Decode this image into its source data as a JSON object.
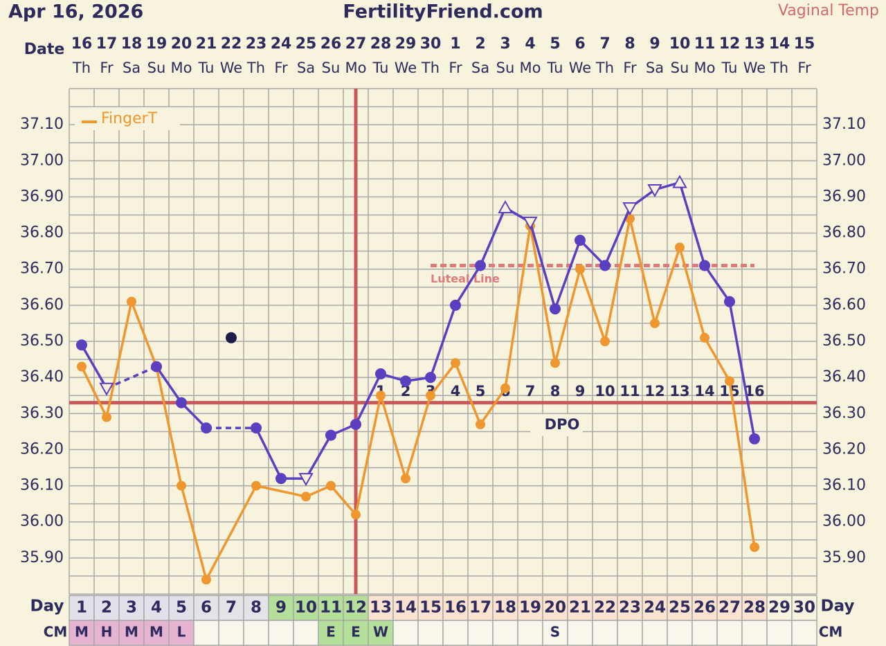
{
  "chart_data": {
    "type": "line",
    "date": "Apr 16, 2026",
    "title": "FertilityFriend.com",
    "date_label": "Date",
    "day_label": "Day",
    "cm_label": "CM",
    "dates": [
      16,
      17,
      18,
      19,
      20,
      21,
      22,
      23,
      24,
      25,
      26,
      27,
      28,
      29,
      30,
      1,
      2,
      3,
      4,
      5,
      6,
      7,
      8,
      9,
      10,
      11,
      12,
      13,
      14,
      15
    ],
    "weekdays": [
      "Th",
      "Fr",
      "Sa",
      "Su",
      "Mo",
      "Tu",
      "We",
      "Th",
      "Fr",
      "Sa",
      "Su",
      "Mo",
      "Tu",
      "We",
      "Th",
      "Fr",
      "Sa",
      "Su",
      "Mo",
      "Tu",
      "We",
      "Th",
      "Fr",
      "Sa",
      "Su",
      "Mo",
      "Tu",
      "We",
      "Th",
      "Fr"
    ],
    "days": [
      1,
      2,
      3,
      4,
      5,
      6,
      7,
      8,
      9,
      10,
      11,
      12,
      13,
      14,
      15,
      16,
      17,
      18,
      19,
      20,
      21,
      22,
      23,
      24,
      25,
      26,
      27,
      28,
      29,
      30
    ],
    "day_colors": [
      "#e2e0e8",
      "#e2e0e8",
      "#e2e0e8",
      "#e2e0e8",
      "#e2e0e8",
      "#e4e3e8",
      "#e4e3e8",
      "#e4e3e8",
      "#b5e09a",
      "#b5e09a",
      "#b5e09a",
      "#b5e09a",
      "#fbe3cf",
      "#fbe3cf",
      "#fbe3cf",
      "#fbe3cf",
      "#fbe3cf",
      "#fbe3cf",
      "#fbe3cf",
      "#fbe3cf",
      "#fbe3cf",
      "#fbe3cf",
      "#fbe3cf",
      "#fbe3cf",
      "#fbe3cf",
      "#fbe3cf",
      "#fbe3cf",
      "#fbe3cf",
      "#f8f4de",
      "#f8f4de"
    ],
    "cm": [
      "M",
      "H",
      "M",
      "M",
      "L",
      null,
      null,
      null,
      null,
      null,
      "E",
      "E",
      "W",
      null,
      null,
      null,
      null,
      null,
      null,
      "S",
      null,
      null,
      null,
      null,
      null,
      null,
      null,
      null,
      null,
      null
    ],
    "cm_colors": [
      "#e6b3d1",
      "#e6b3d1",
      "#e6b3d1",
      "#e6b3d1",
      "#e6b3d1",
      null,
      null,
      null,
      null,
      null,
      "#b5e09a",
      "#b5e09a",
      "#b5e09a",
      null,
      null,
      null,
      null,
      null,
      null,
      null,
      null,
      null,
      null,
      null,
      null,
      null,
      null,
      null,
      null,
      null
    ],
    "dpo": [
      null,
      null,
      null,
      null,
      null,
      null,
      null,
      null,
      null,
      null,
      null,
      null,
      1,
      2,
      3,
      4,
      5,
      6,
      7,
      8,
      9,
      10,
      11,
      12,
      13,
      14,
      15,
      16,
      null,
      null
    ],
    "dpo_label": "DPO",
    "ylim": [
      35.8,
      37.2
    ],
    "yticks": [
      {
        "value": 35.9,
        "label": "35.90"
      },
      {
        "value": 36.0,
        "label": "36.00"
      },
      {
        "value": 36.1,
        "label": "36.10"
      },
      {
        "value": 36.2,
        "label": "36.20"
      },
      {
        "value": 36.3,
        "label": "36.30"
      },
      {
        "value": 36.4,
        "label": "36.40"
      },
      {
        "value": 36.5,
        "label": "36.50"
      },
      {
        "value": 36.6,
        "label": "36.60"
      },
      {
        "value": 36.7,
        "label": "36.70"
      },
      {
        "value": 36.8,
        "label": "36.80"
      },
      {
        "value": 36.9,
        "label": "36.90"
      },
      {
        "value": 37.0,
        "label": "37.00"
      },
      {
        "value": 37.1,
        "label": "37.10"
      }
    ],
    "grid": true,
    "coverline": 36.33,
    "ovulation_day": 12,
    "luteal_line": {
      "label": "Luteal Line",
      "value": 36.71,
      "from_day": 15,
      "to_day": 28,
      "color": "#e07a7a"
    },
    "line_color": "#c8585a",
    "series": [
      {
        "name": "Vaginal Temp",
        "color": "#5a3fc0",
        "gap_style": "dashed",
        "hollow_up": [
          17,
          24
        ],
        "hollow_down": [
          1,
          9,
          18,
          22,
          23
        ],
        "values": [
          36.49,
          36.37,
          null,
          36.43,
          36.33,
          36.26,
          null,
          36.26,
          36.12,
          36.12,
          36.24,
          36.27,
          36.41,
          36.39,
          36.4,
          36.6,
          36.71,
          36.87,
          36.83,
          36.59,
          36.78,
          36.71,
          36.87,
          36.92,
          36.94,
          36.71,
          36.61,
          36.23,
          null,
          null
        ]
      },
      {
        "name": "FingerT",
        "color": "#f0962e",
        "gap_style": "solid",
        "values": [
          36.43,
          36.29,
          36.61,
          36.43,
          36.1,
          35.84,
          null,
          36.1,
          null,
          36.07,
          36.1,
          36.02,
          36.35,
          36.12,
          36.35,
          36.44,
          36.27,
          36.37,
          36.82,
          36.44,
          36.7,
          36.5,
          36.84,
          36.55,
          36.76,
          36.51,
          36.39,
          35.93,
          null,
          null
        ]
      }
    ],
    "other_points": [
      {
        "day": 7,
        "value": 36.51,
        "color": "#1e1b4a"
      }
    ]
  }
}
